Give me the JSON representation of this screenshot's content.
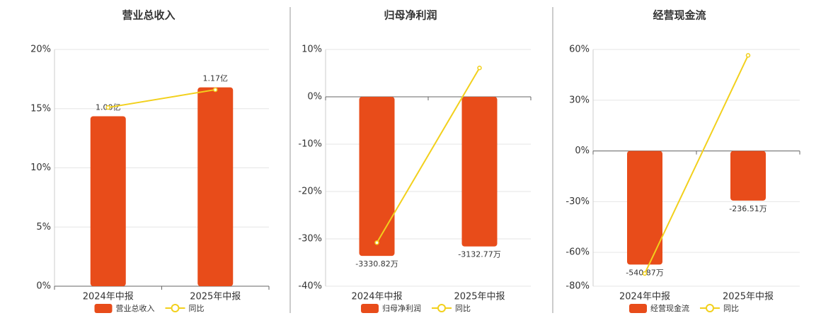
{
  "chart_data": [
    {
      "type": "bar-line",
      "title": "营业总收入",
      "categories": [
        "2024年中报",
        "2025年中报"
      ],
      "series": [
        {
          "name": "营业总收入",
          "type": "bar",
          "color": "#e84c1a",
          "values": [
            1.0,
            1.17
          ],
          "value_labels": [
            "1.00亿",
            "1.17亿"
          ]
        },
        {
          "name": "同比",
          "type": "line",
          "color": "#f2d01c",
          "values": [
            15.1,
            16.6
          ]
        }
      ],
      "ylim": [
        0,
        20
      ],
      "yticks": [
        {
          "value": 0,
          "label": "0%"
        },
        {
          "value": 5,
          "label": "5%"
        },
        {
          "value": 10,
          "label": "10%"
        },
        {
          "value": 15,
          "label": "15%"
        },
        {
          "value": 20,
          "label": "20%"
        }
      ],
      "grid": true
    },
    {
      "type": "bar-line",
      "title": "归母净利润",
      "categories": [
        "2024年中报",
        "2025年中报"
      ],
      "series": [
        {
          "name": "归母净利润",
          "type": "bar",
          "color": "#e84c1a",
          "values": [
            -3330.82,
            -3132.77
          ],
          "value_labels": [
            "-3330.82万",
            "-3132.77万"
          ]
        },
        {
          "name": "同比",
          "type": "line",
          "color": "#f2d01c",
          "values": [
            -30.8,
            6.1
          ]
        }
      ],
      "ylim": [
        -40,
        10
      ],
      "yticks": [
        {
          "value": -40,
          "label": "-40%"
        },
        {
          "value": -30,
          "label": "-30%"
        },
        {
          "value": -20,
          "label": "-20%"
        },
        {
          "value": -10,
          "label": "-10%"
        },
        {
          "value": 0,
          "label": "0%"
        },
        {
          "value": 10,
          "label": "10%"
        }
      ],
      "grid": true
    },
    {
      "type": "bar-line",
      "title": "经营现金流",
      "categories": [
        "2024年中报",
        "2025年中报"
      ],
      "series": [
        {
          "name": "经营现金流",
          "type": "bar",
          "color": "#e84c1a",
          "values": [
            -540.87,
            -236.51
          ],
          "value_labels": [
            "-540.87万",
            "-236.51万"
          ]
        },
        {
          "name": "同比",
          "type": "line",
          "color": "#f2d01c",
          "values": [
            -72.5,
            56.5
          ]
        }
      ],
      "ylim": [
        -80,
        60
      ],
      "yticks": [
        {
          "value": -80,
          "label": "-80%"
        },
        {
          "value": -60,
          "label": "-60%"
        },
        {
          "value": -30,
          "label": "-30%"
        },
        {
          "value": 0,
          "label": "0%"
        },
        {
          "value": 30,
          "label": "30%"
        },
        {
          "value": 60,
          "label": "60%"
        }
      ],
      "grid": true
    }
  ]
}
